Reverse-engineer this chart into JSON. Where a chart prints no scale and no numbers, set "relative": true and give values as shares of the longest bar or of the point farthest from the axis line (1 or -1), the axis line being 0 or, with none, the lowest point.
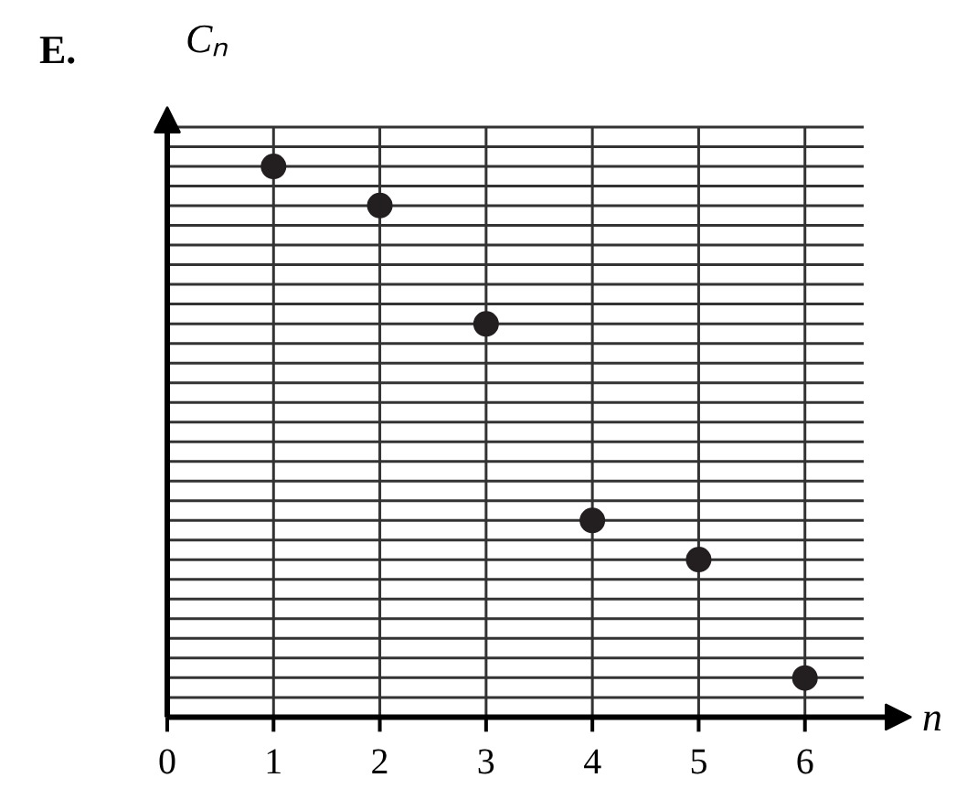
{
  "chart_data": {
    "type": "scatter",
    "title": "E.",
    "xlabel": "n",
    "ylabel": "Cₙ",
    "x": [
      1,
      2,
      3,
      4,
      5,
      6
    ],
    "series": [
      {
        "color": "#231f20",
        "values": [
          1,
          0.929,
          0.714,
          0.357,
          0.286,
          0.071
        ]
      }
    ],
    "relative": true,
    "xlim": [
      0,
      7
    ],
    "xticks": [
      0,
      1,
      2,
      3,
      4,
      5,
      6
    ],
    "grid": true,
    "marker": "circle"
  }
}
